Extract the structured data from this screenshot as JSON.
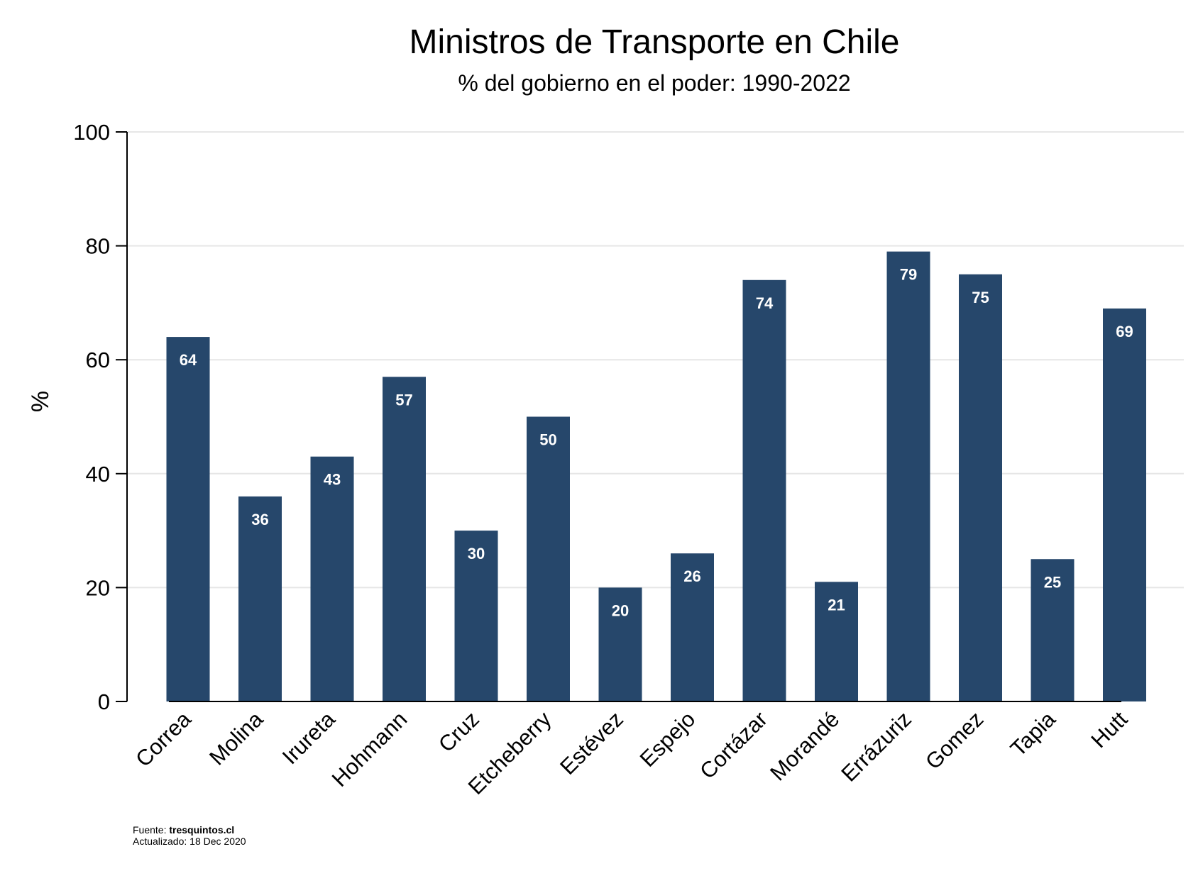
{
  "chart_data": {
    "type": "bar",
    "title": "Ministros de Transporte en Chile",
    "subtitle": "% del gobierno en el poder: 1990-2022",
    "ylabel": "%",
    "xlabel": "",
    "ylim": [
      0,
      100
    ],
    "yticks": [
      "0",
      "20",
      "40",
      "60",
      "80",
      "100"
    ],
    "grid": true,
    "categories": [
      "Correa",
      "Molina",
      "Irureta",
      "Hohmann",
      "Cruz",
      "Etcheberry",
      "Estévez",
      "Espejo",
      "Cortázar",
      "Morandé",
      "Errázuriz",
      "Gomez",
      "Tapia",
      "Hutt"
    ],
    "values": [
      64,
      36,
      43,
      57,
      30,
      50,
      20,
      26,
      74,
      21,
      79,
      75,
      25,
      69
    ],
    "data_labels": [
      "64",
      "36",
      "43",
      "57",
      "30",
      "50",
      "20",
      "26",
      "74",
      "21",
      "79",
      "75",
      "25",
      "69"
    ],
    "bar_color": "#26476b",
    "grid_color": "#e6e6e6"
  },
  "footer": {
    "source_label": "Fuente: ",
    "source_value": "tresquintos.cl",
    "updated": "Actualizado: 18 Dec 2020"
  }
}
